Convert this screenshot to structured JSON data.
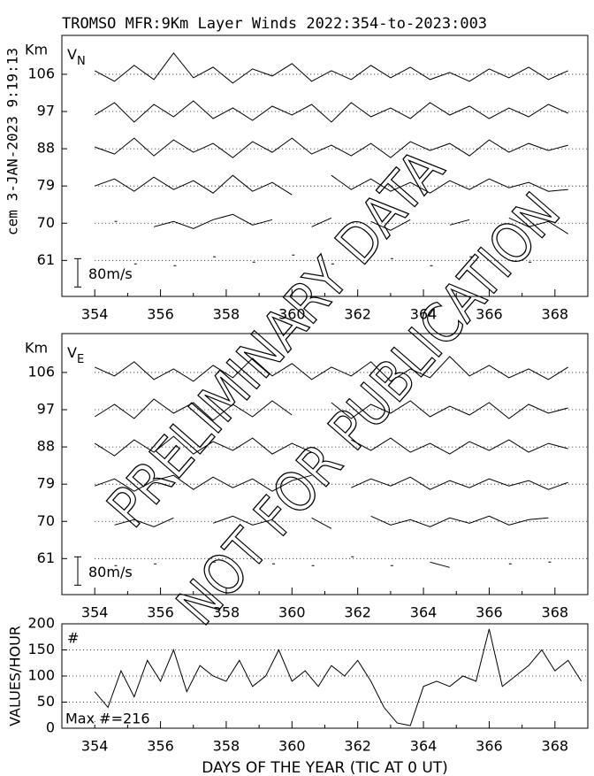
{
  "title": "TROMSO MFR:9Km Layer Winds 2022:354-to-2023:003",
  "stamp": "cem 3-JAN-2023  9:19:13",
  "watermark": [
    "PRELIMINARY DATA",
    "NOT FOR PUBLICATION"
  ],
  "chart_data": [
    {
      "type": "ridgeline",
      "label": "V",
      "label_sub": "N",
      "y_label": "Km",
      "color": "#000000",
      "grid": true,
      "xlim": [
        353,
        369
      ],
      "xticks": [
        354,
        356,
        358,
        360,
        362,
        364,
        366,
        368
      ],
      "xminor": [
        355,
        357,
        359,
        361,
        363,
        365,
        367
      ],
      "ylim": [
        52.3,
        115.4
      ],
      "yticks": [
        106,
        97,
        88,
        79,
        70,
        61
      ],
      "scale_bar": {
        "value": 80,
        "label": "80m/s"
      },
      "x": [
        354,
        354.6,
        355.2,
        355.8,
        356.4,
        357,
        357.6,
        358.2,
        358.8,
        359.4,
        360,
        360.6,
        361.2,
        361.8,
        362.4,
        363,
        363.6,
        364.2,
        364.8,
        365.4,
        366,
        366.6,
        367.2,
        367.8,
        368.4
      ],
      "series": [
        {
          "level": 106,
          "values": [
            10,
            -20,
            25,
            -15,
            60,
            -10,
            20,
            -25,
            15,
            -5,
            30,
            -20,
            10,
            -15,
            25,
            -10,
            20,
            -15,
            5,
            -20,
            15,
            -10,
            20,
            -15,
            10
          ]
        },
        {
          "level": 97,
          "values": [
            -10,
            25,
            -30,
            20,
            -15,
            30,
            -20,
            10,
            -25,
            15,
            -10,
            20,
            -30,
            25,
            -15,
            10,
            -20,
            25,
            -10,
            15,
            -20,
            10,
            -15,
            20,
            -5
          ]
        },
        {
          "level": 88,
          "values": [
            5,
            -15,
            30,
            -20,
            25,
            -10,
            15,
            -25,
            20,
            -10,
            30,
            -15,
            10,
            -20,
            15,
            -25,
            20,
            -5,
            15,
            -20,
            25,
            -10,
            15,
            -5,
            10
          ]
        },
        {
          "level": 79,
          "values": [
            0,
            20,
            -15,
            25,
            -10,
            15,
            -20,
            30,
            -15,
            10,
            -25,
            null,
            30,
            -10,
            20,
            -15,
            10,
            -20,
            15,
            -10,
            20,
            -5,
            10,
            -15,
            -10
          ]
        },
        {
          "level": 70,
          "values": [
            null,
            5,
            null,
            -10,
            5,
            -15,
            10,
            25,
            -5,
            10,
            null,
            -10,
            15,
            null,
            5,
            -20,
            10,
            null,
            -5,
            10,
            null,
            15,
            -10,
            5,
            -30
          ]
        },
        {
          "level": 61,
          "values": [
            null,
            null,
            -10,
            null,
            -15,
            null,
            10,
            null,
            -5,
            null,
            15,
            null,
            -10,
            null,
            null,
            5,
            null,
            -15,
            null,
            10,
            null,
            null,
            -5,
            null,
            null
          ]
        }
      ]
    },
    {
      "type": "ridgeline",
      "label": "V",
      "label_sub": "E",
      "y_label": "Km",
      "color": "#000000",
      "grid": true,
      "xlim": [
        353,
        369
      ],
      "xticks": [
        354,
        356,
        358,
        360,
        362,
        364,
        366,
        368
      ],
      "xminor": [
        355,
        357,
        359,
        361,
        363,
        365,
        367
      ],
      "ylim": [
        52.3,
        115.4
      ],
      "yticks": [
        106,
        97,
        88,
        79,
        70,
        61
      ],
      "scale_bar": {
        "value": 80,
        "label": "80m/s"
      },
      "x": [
        354,
        354.6,
        355.2,
        355.8,
        356.4,
        357,
        357.6,
        358.2,
        358.8,
        359.4,
        360,
        360.6,
        361.2,
        361.8,
        362.4,
        363,
        363.6,
        364.2,
        364.8,
        365.4,
        366,
        366.6,
        367.2,
        367.8,
        368.4
      ],
      "series": [
        {
          "level": 106,
          "values": [
            15,
            -10,
            30,
            -20,
            10,
            -25,
            20,
            -15,
            40,
            -10,
            25,
            -20,
            15,
            -10,
            30,
            -25,
            10,
            -15,
            45,
            -10,
            20,
            -15,
            10,
            -20,
            15
          ]
        },
        {
          "level": 97,
          "values": [
            -20,
            15,
            -25,
            30,
            -10,
            20,
            -30,
            15,
            -20,
            25,
            -15,
            null,
            20,
            -25,
            15,
            -10,
            25,
            -20,
            10,
            -15,
            20,
            -25,
            15,
            -10,
            5
          ]
        },
        {
          "level": 88,
          "values": [
            10,
            -25,
            20,
            -15,
            30,
            -20,
            15,
            -10,
            25,
            -20,
            10,
            -15,
            null,
            20,
            -10,
            25,
            -15,
            10,
            -20,
            15,
            -10,
            20,
            -15,
            10,
            -5
          ]
        },
        {
          "level": 79,
          "values": [
            -5,
            15,
            -20,
            10,
            25,
            -15,
            20,
            -10,
            15,
            -20,
            10,
            25,
            null,
            -10,
            15,
            -5,
            20,
            -15,
            10,
            -10,
            15,
            -5,
            10,
            -15,
            5
          ]
        },
        {
          "level": 70,
          "values": [
            null,
            -10,
            5,
            -15,
            10,
            null,
            -5,
            15,
            -10,
            5,
            null,
            10,
            -20,
            null,
            15,
            -10,
            5,
            -15,
            10,
            -5,
            15,
            -10,
            5,
            10,
            null
          ]
        },
        {
          "level": 61,
          "values": [
            null,
            -20,
            null,
            -15,
            null,
            null,
            -10,
            null,
            null,
            -15,
            null,
            -20,
            null,
            5,
            null,
            -20,
            null,
            -10,
            -25,
            null,
            null,
            -15,
            null,
            -10,
            null
          ]
        }
      ]
    },
    {
      "type": "line",
      "y_label": "VALUES/HOUR",
      "marker": "#",
      "note": "Max #=216",
      "x_label": "DAYS OF THE YEAR (TIC AT 0 UT)",
      "color": "#000000",
      "grid": true,
      "xlim": [
        353,
        369
      ],
      "xticks": [
        354,
        356,
        358,
        360,
        362,
        364,
        366,
        368
      ],
      "xminor": [
        355,
        357,
        359,
        361,
        363,
        365,
        367
      ],
      "ylim": [
        0,
        200
      ],
      "yticks": [
        0,
        50,
        100,
        150,
        200
      ],
      "x": [
        354,
        354.4,
        354.8,
        355.2,
        355.6,
        356,
        356.4,
        356.8,
        357.2,
        357.6,
        358,
        358.4,
        358.8,
        359.2,
        359.6,
        360,
        360.4,
        360.8,
        361.2,
        361.6,
        362,
        362.4,
        362.8,
        363.2,
        363.6,
        364,
        364.4,
        364.8,
        365.2,
        365.6,
        366,
        366.4,
        366.8,
        367.2,
        367.6,
        368,
        368.4,
        368.8
      ],
      "values": [
        70,
        40,
        110,
        60,
        130,
        90,
        150,
        70,
        120,
        100,
        90,
        130,
        80,
        100,
        150,
        90,
        110,
        80,
        120,
        100,
        130,
        90,
        40,
        10,
        5,
        80,
        90,
        80,
        100,
        90,
        190,
        80,
        100,
        120,
        150,
        110,
        130,
        90
      ]
    }
  ]
}
